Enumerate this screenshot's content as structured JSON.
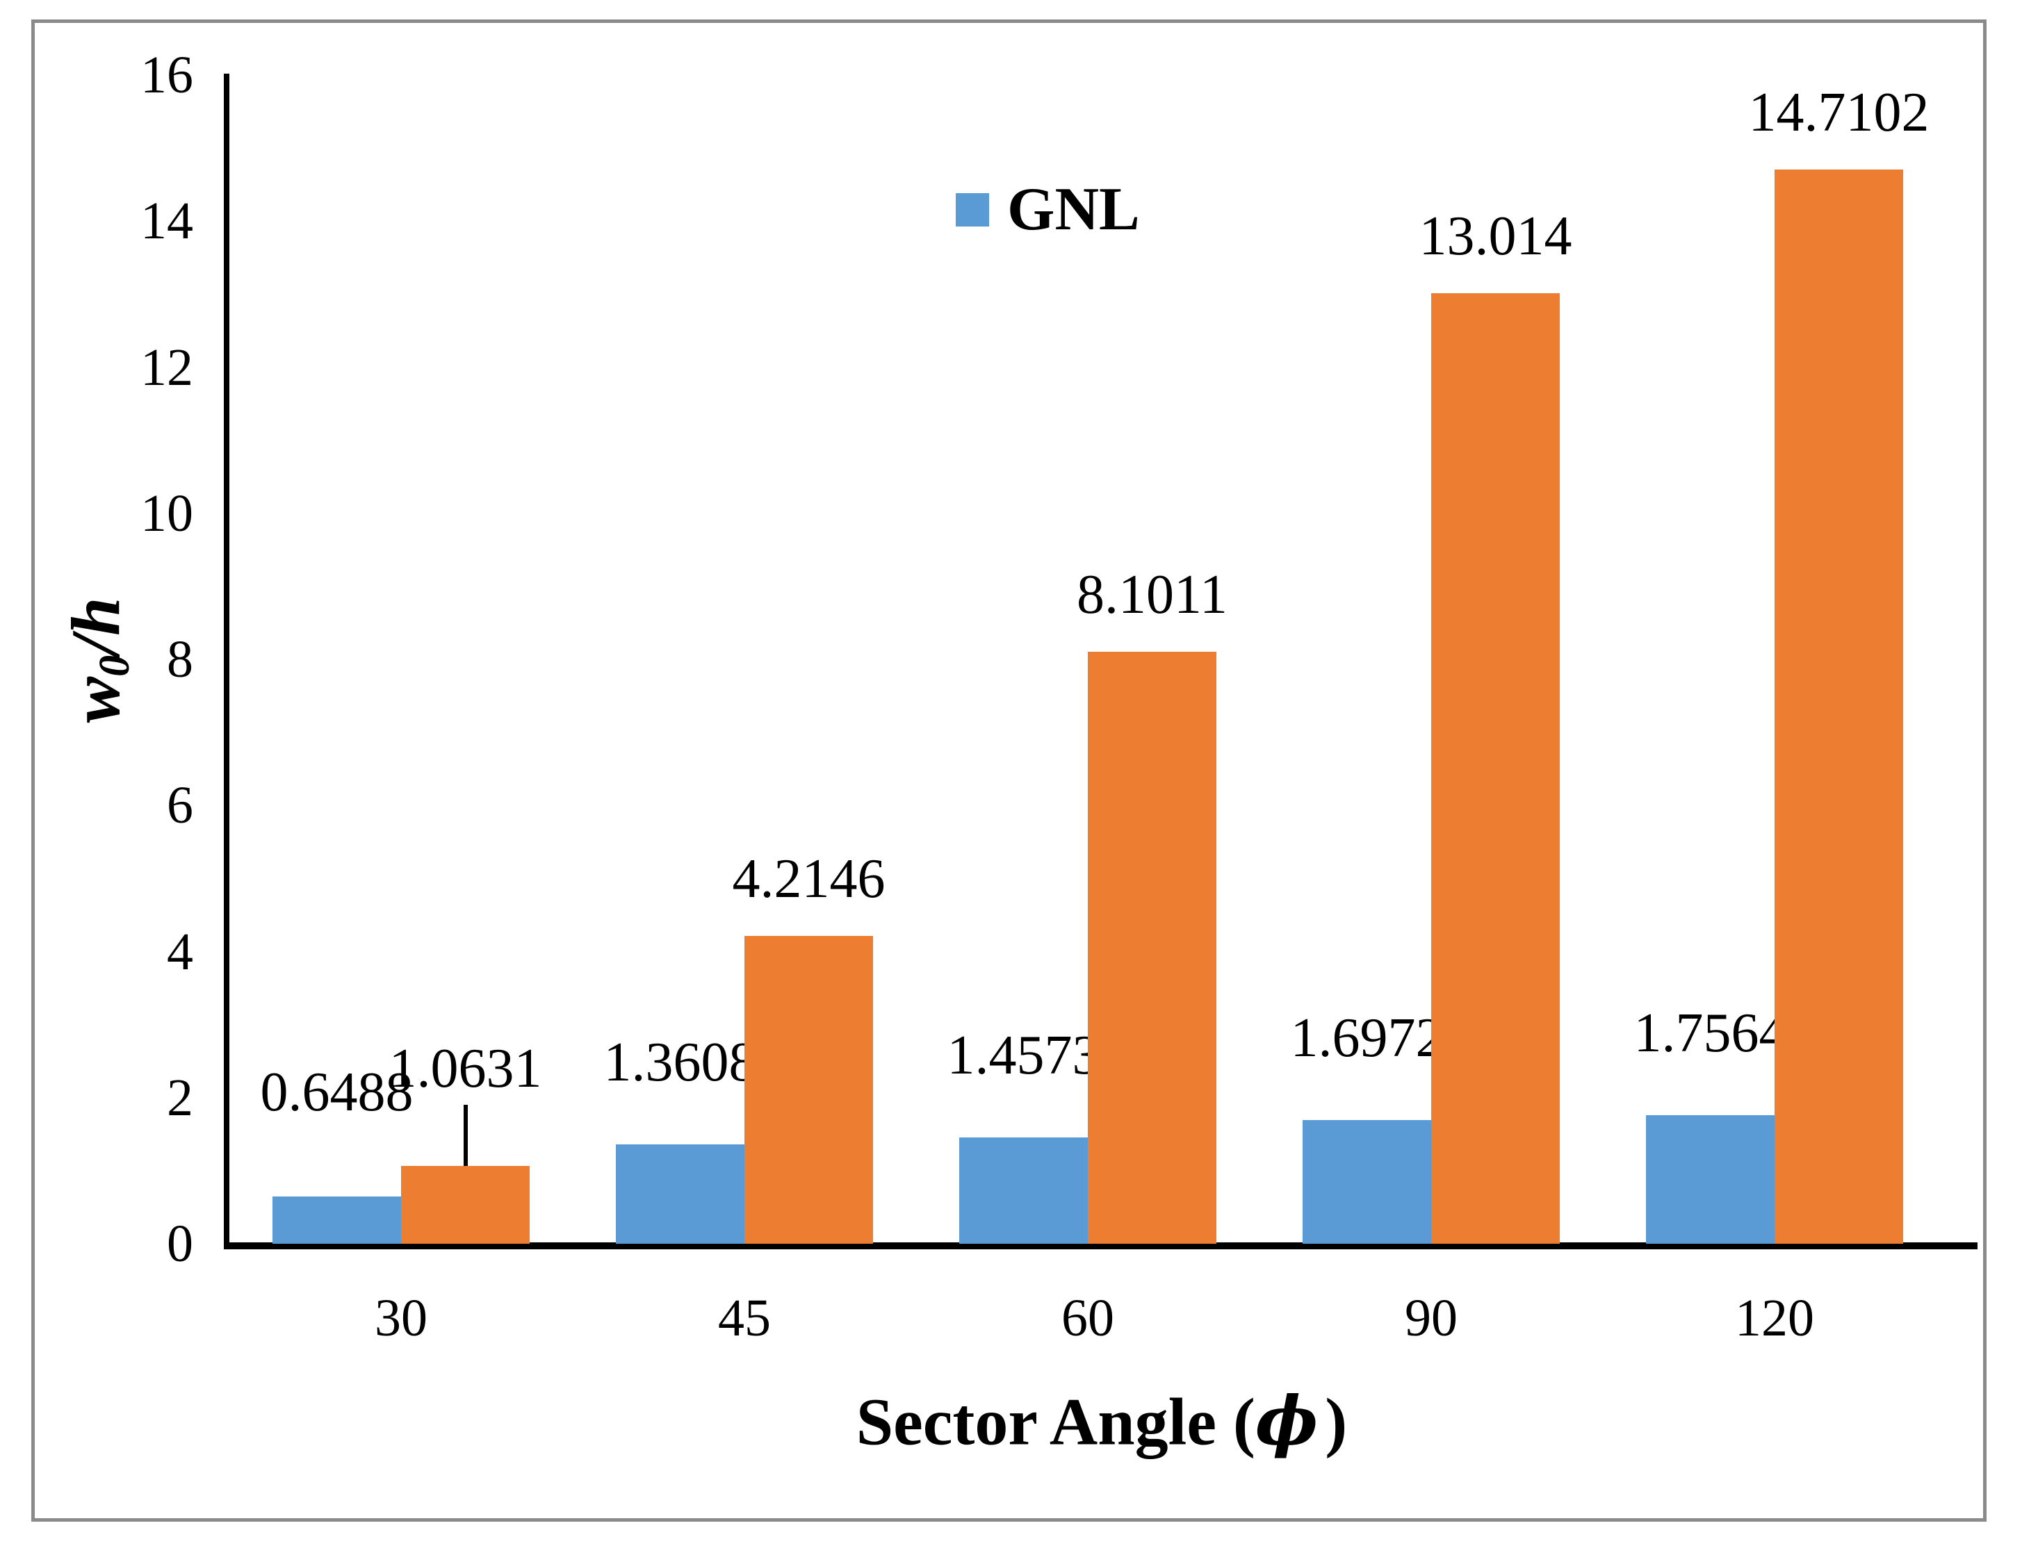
{
  "chart_data": {
    "type": "bar",
    "title": "",
    "categories": [
      "30",
      "45",
      "60",
      "90",
      "120"
    ],
    "series": [
      {
        "name": "GNL",
        "color": "#5B9BD5",
        "values": [
          0.6488,
          1.3608,
          1.4573,
          1.6972,
          1.7564
        ],
        "labels": [
          "0.6488",
          "1.3608",
          "1.4573",
          "1.6972",
          "1.7564"
        ],
        "show_in_legend": true
      },
      {
        "name": "",
        "color": "#ED7D31",
        "values": [
          1.0631,
          4.2146,
          8.1011,
          13.014,
          14.7102
        ],
        "labels": [
          "1.0631",
          "4.2146",
          "8.1011",
          "13.014",
          "14.7102"
        ],
        "show_in_legend": false
      }
    ],
    "xlabel_parts": {
      "pre": "Sector Angle (",
      "phi": "ϕ",
      "post": ")"
    },
    "ylabel_parts": {
      "pre": "w",
      "sub": "0",
      "post": "/h"
    },
    "ylim": [
      0,
      16
    ],
    "ytick_step": 2,
    "yticks": [
      "0",
      "2",
      "4",
      "6",
      "8",
      "10",
      "12",
      "14",
      "16"
    ],
    "grid": false,
    "legend_position": "top-center",
    "bar_value_labels": true,
    "callout": {
      "series": 1,
      "index": 0
    }
  },
  "legend": {
    "items": [
      {
        "label": "GNL",
        "color": "#5B9BD5"
      }
    ]
  },
  "frame": {
    "border_color": "#8A8A8A"
  }
}
